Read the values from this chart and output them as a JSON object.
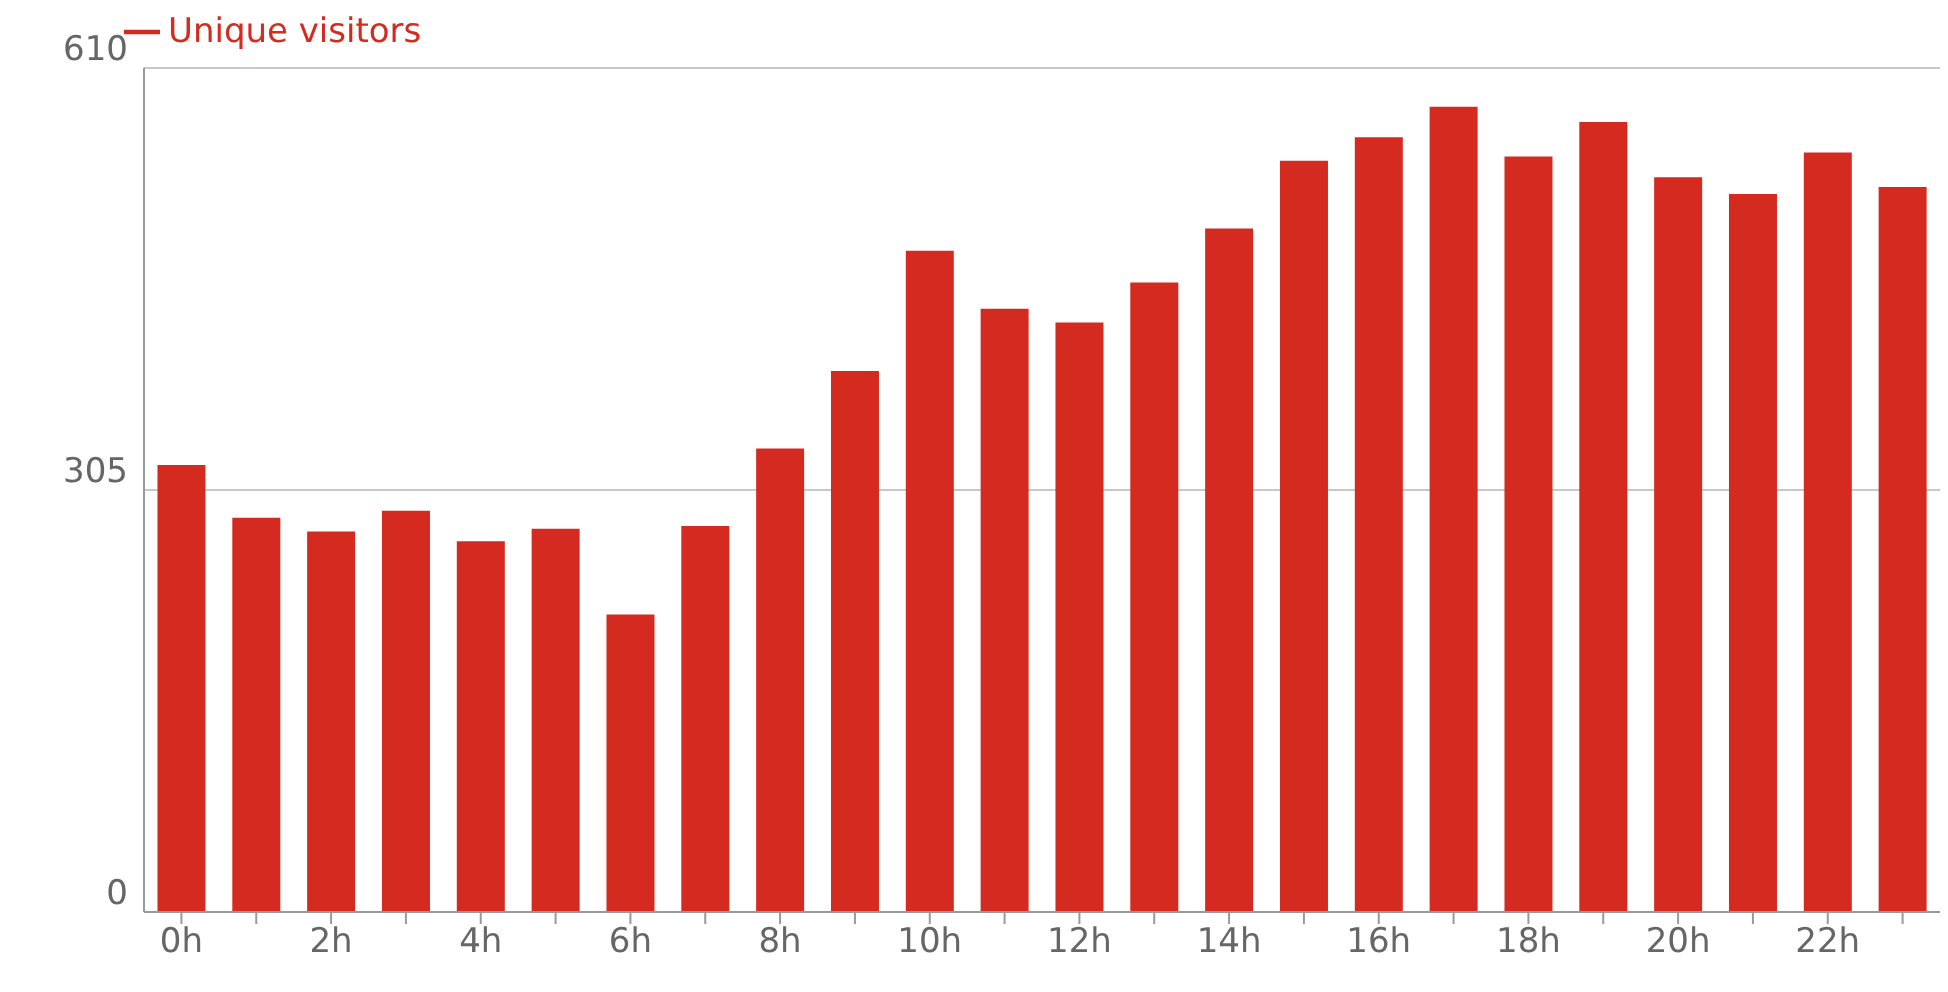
{
  "chart_data": {
    "type": "bar",
    "categories": [
      "0h",
      null,
      "2h",
      null,
      "4h",
      null,
      "6h",
      null,
      "8h",
      null,
      "10h",
      null,
      "12h",
      null,
      "14h",
      null,
      "16h",
      null,
      "18h",
      null,
      "20h",
      null,
      "22h",
      null
    ],
    "series": [
      {
        "name": "Unique visitors",
        "color": "#d42a20",
        "values": [
          323,
          285,
          275,
          290,
          268,
          277,
          215,
          279,
          335,
          391,
          478,
          436,
          426,
          455,
          494,
          543,
          560,
          582,
          546,
          571,
          531,
          519,
          549,
          524
        ]
      }
    ],
    "ylim": [
      0,
      610
    ],
    "yticks": [
      0,
      305,
      610
    ],
    "grid": "y",
    "legend": "top left"
  }
}
